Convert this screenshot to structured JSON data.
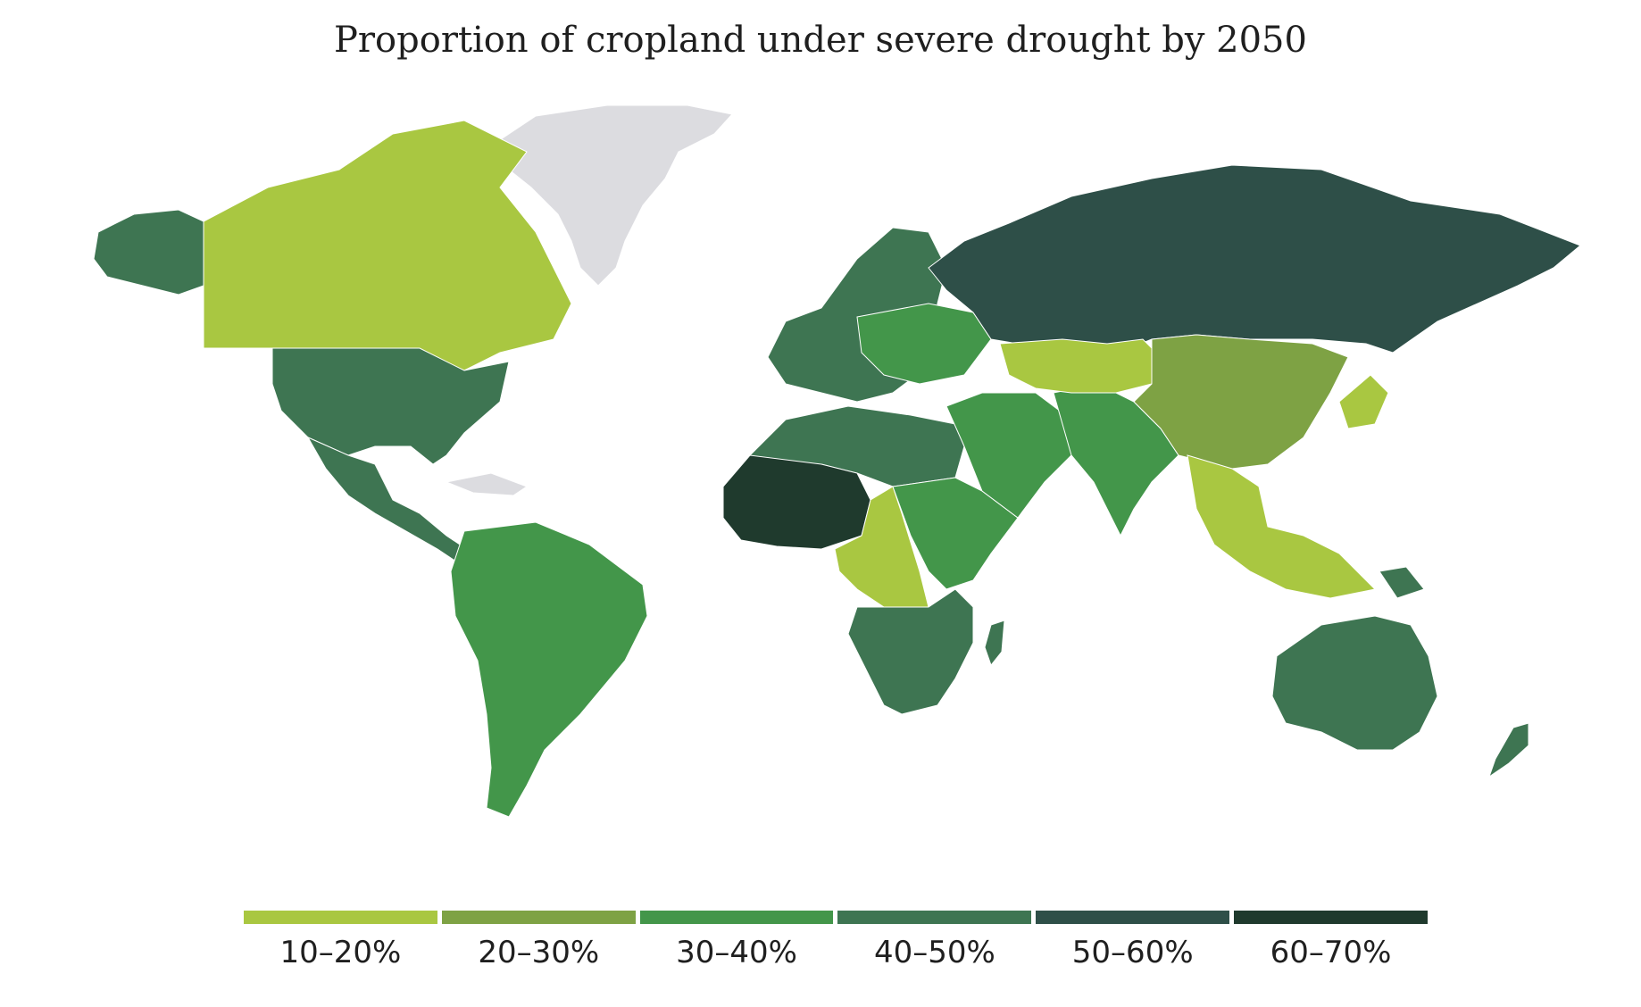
{
  "title": "Proportion of cropland under severe drought by 2050",
  "legend": [
    {
      "label": "10–20%",
      "color": "#a9c741"
    },
    {
      "label": "20–30%",
      "color": "#7ea244"
    },
    {
      "label": "30–40%",
      "color": "#43964a"
    },
    {
      "label": "40–50%",
      "color": "#3e7552"
    },
    {
      "label": "50–60%",
      "color": "#2e4f48"
    },
    {
      "label": "60–70%",
      "color": "#1f3a2d"
    }
  ],
  "no_data_color": "#dcdce0",
  "regions": [
    {
      "name": "Canada",
      "class": "10–20%"
    },
    {
      "name": "Greenland",
      "class": "no data"
    },
    {
      "name": "Alaska",
      "class": "40–50%"
    },
    {
      "name": "United States",
      "class": "40–50%"
    },
    {
      "name": "Mexico & Central America",
      "class": "40–50%"
    },
    {
      "name": "South America",
      "class": "30–40%"
    },
    {
      "name": "Europe",
      "class": "40–50%"
    },
    {
      "name": "Eastern Europe",
      "class": "30–40%"
    },
    {
      "name": "Russia",
      "class": "50–60%"
    },
    {
      "name": "North Africa",
      "class": "40–50%"
    },
    {
      "name": "West Africa / Sahel",
      "class": "60–70%"
    },
    {
      "name": "Central Africa",
      "class": "10–20%"
    },
    {
      "name": "East Africa",
      "class": "30–40%"
    },
    {
      "name": "Southern Africa",
      "class": "40–50%"
    },
    {
      "name": "Madagascar",
      "class": "40–50%"
    },
    {
      "name": "Middle East",
      "class": "30–40%"
    },
    {
      "name": "South Asia",
      "class": "30–40%"
    },
    {
      "name": "Central Asia",
      "class": "10–20%"
    },
    {
      "name": "China & Mongolia",
      "class": "20–30%"
    },
    {
      "name": "Japan & Korea",
      "class": "10–20%"
    },
    {
      "name": "Southeast Asia",
      "class": "10–20%"
    },
    {
      "name": "Papua New Guinea",
      "class": "40–50%"
    },
    {
      "name": "Australia",
      "class": "40–50%"
    },
    {
      "name": "New Zealand",
      "class": "40–50%"
    }
  ]
}
